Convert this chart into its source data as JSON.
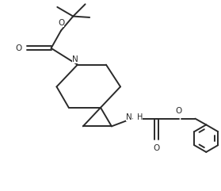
{
  "background_color": "#ffffff",
  "line_color": "#2a2a2a",
  "line_width": 1.4,
  "figsize": [
    2.79,
    2.41
  ],
  "dpi": 100,
  "xlim": [
    0,
    10
  ],
  "ylim": [
    0,
    8.6
  ]
}
